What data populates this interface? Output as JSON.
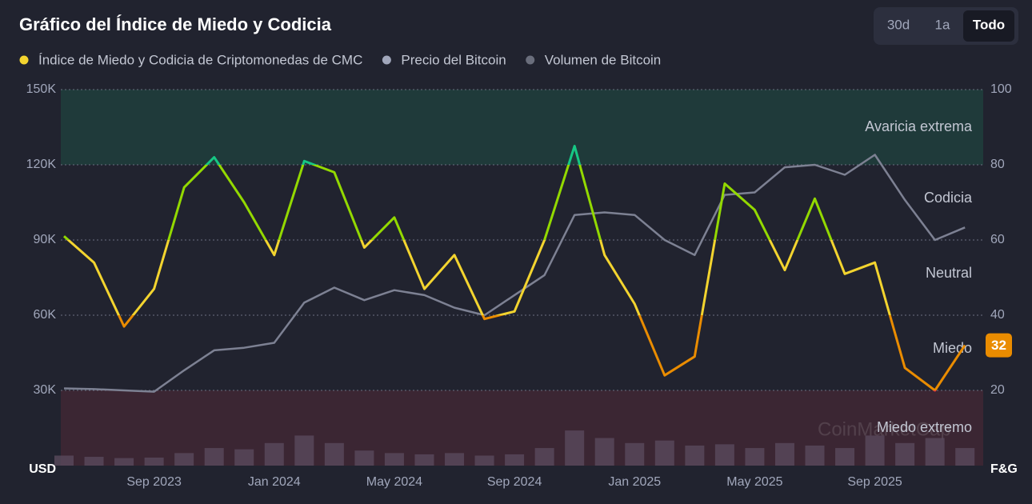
{
  "controls": {
    "buttons": [
      "30d",
      "1a",
      "Todo"
    ],
    "active": 2
  },
  "chart_data": {
    "type": "line",
    "title": "Gráfico del Índice de Miedo y Codicia",
    "watermark": "CoinMarketCap",
    "ylabel": "USD",
    "y2label": "F&G",
    "categories": [
      null,
      null,
      null,
      "Sep 2023",
      null,
      null,
      null,
      "Jan 2024",
      null,
      null,
      null,
      "May 2024",
      null,
      null,
      null,
      "Sep 2024",
      null,
      null,
      null,
      "Jan 2025",
      null,
      null,
      null,
      "May 2025",
      null,
      null,
      null,
      "Sep 2025",
      null,
      null,
      null
    ],
    "ylim": [
      0,
      150000
    ],
    "yticks": [
      {
        "value": 30000,
        "label": "30K"
      },
      {
        "value": 60000,
        "label": "60K"
      },
      {
        "value": 90000,
        "label": "90K"
      },
      {
        "value": 120000,
        "label": "120K"
      },
      {
        "value": 150000,
        "label": "150K"
      }
    ],
    "y2lim": [
      0,
      100
    ],
    "y2ticks": [
      20,
      40,
      60,
      80,
      100
    ],
    "grid": true,
    "bands": [
      {
        "from": 80,
        "to": 100,
        "color": "#1f3a3a"
      },
      {
        "from": 0,
        "to": 20,
        "color": "#3b2633"
      }
    ],
    "annotations": [
      {
        "text": "Avaricia extrema",
        "y2": 90
      },
      {
        "text": "Codicia",
        "y2": 71
      },
      {
        "text": "Neutral",
        "y2": 51
      },
      {
        "text": "Miedo",
        "y2": 31
      },
      {
        "text": "Miedo extremo",
        "y2": 10
      }
    ],
    "series": [
      {
        "name": "Índice de Miedo y Codicia de Criptomonedas de CMC",
        "axis": "y2",
        "color": "#f3d42f",
        "zone_colors": [
          {
            "from": 0,
            "to": 20,
            "color": "#ea3943"
          },
          {
            "from": 20,
            "to": 40,
            "color": "#ea8c00"
          },
          {
            "from": 40,
            "to": 60,
            "color": "#f3d42f"
          },
          {
            "from": 60,
            "to": 80,
            "color": "#93d900"
          },
          {
            "from": 80,
            "to": 100,
            "color": "#16c784"
          }
        ],
        "values": [
          61,
          54,
          37,
          47,
          74,
          82,
          70,
          56,
          81,
          78,
          58,
          66,
          47,
          56,
          39,
          41,
          60,
          85,
          56,
          43,
          24,
          29,
          75,
          68,
          52,
          71,
          51,
          54,
          26,
          20,
          32
        ]
      },
      {
        "name": "Precio del Bitcoin",
        "color": "#7d8193",
        "values": [
          30800,
          30500,
          30000,
          29500,
          38000,
          46000,
          47000,
          49000,
          65000,
          71000,
          66000,
          70000,
          68000,
          63000,
          60000,
          68000,
          76000,
          100000,
          101000,
          100000,
          90000,
          84000,
          108000,
          109000,
          119000,
          120000,
          116000,
          124000,
          106000,
          90000,
          95000
        ]
      },
      {
        "name": "Volumen de Bitcoin",
        "type": "bar",
        "color": "#5a4a5c",
        "values": [
          4000,
          3500,
          3000,
          3200,
          5000,
          7000,
          6500,
          9000,
          12000,
          9000,
          6000,
          5000,
          4500,
          5000,
          4000,
          4500,
          7000,
          14000,
          11000,
          9000,
          10000,
          8000,
          8500,
          7000,
          9000,
          8000,
          7000,
          12000,
          9000,
          11000,
          7000
        ]
      }
    ]
  }
}
